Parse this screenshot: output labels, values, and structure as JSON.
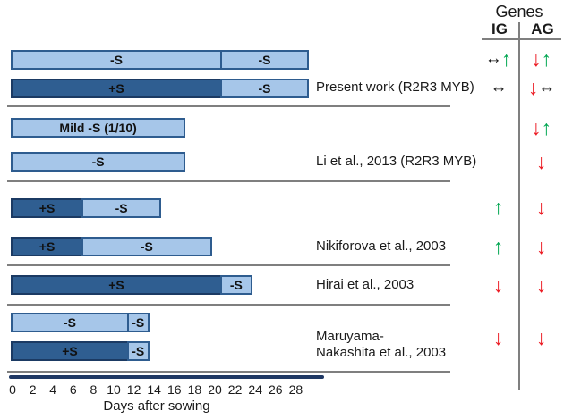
{
  "figure": {
    "genes_header": "Genes",
    "gene_column_ig": "IG",
    "gene_column_ag": "AG"
  },
  "axis": {
    "title": "Days after sowing"
  },
  "icons": {
    "up": "↑",
    "down": "↓",
    "both": "↔"
  },
  "colors": {
    "light_bar_fill": "#a6c6e9",
    "light_bar_border": "#2e5c8f",
    "dark_bar_fill": "#2f5e91",
    "dark_bar_border": "#1b3a63",
    "axis_line": "#1f3864",
    "divider_line": "#7f7f7f",
    "arrow_up_green": "#00a651",
    "arrow_down_red": "#ec1c24",
    "arrow_both_black": "#151515"
  },
  "chart_data": {
    "type": "bar",
    "subtype": "horizontal-treatment-timeline",
    "xlabel": "Days after sowing",
    "xlim": [
      0,
      31
    ],
    "x_ticks": [
      0,
      2,
      4,
      6,
      8,
      10,
      12,
      14,
      16,
      18,
      20,
      22,
      24,
      26,
      28
    ],
    "gene_columns": [
      "IG",
      "AG"
    ],
    "bars": [
      {
        "segments": [
          {
            "label": "-S",
            "style": "light",
            "start": 0,
            "end": 20.7
          },
          {
            "label": "-S",
            "style": "light",
            "start": 20.7,
            "end": 29.3
          }
        ]
      },
      {
        "segments": [
          {
            "label": "+S",
            "style": "dark",
            "start": 0,
            "end": 20.7
          },
          {
            "label": "-S",
            "style": "light",
            "start": 20.7,
            "end": 29.3
          }
        ]
      },
      {
        "segments": [
          {
            "label": "Mild -S (1/10)",
            "style": "light",
            "start": 0,
            "end": 17.1
          }
        ]
      },
      {
        "segments": [
          {
            "label": "-S",
            "style": "light",
            "start": 0,
            "end": 17.1
          }
        ]
      },
      {
        "segments": [
          {
            "label": "+S",
            "style": "dark",
            "start": 0,
            "end": 7
          },
          {
            "label": "-S",
            "style": "light",
            "start": 7,
            "end": 14.7
          }
        ]
      },
      {
        "segments": [
          {
            "label": "+S",
            "style": "dark",
            "start": 0,
            "end": 7
          },
          {
            "label": "-S",
            "style": "light",
            "start": 7,
            "end": 19.7
          }
        ]
      },
      {
        "segments": [
          {
            "label": "+S",
            "style": "dark",
            "start": 0,
            "end": 20.7
          },
          {
            "label": "-S",
            "style": "light",
            "start": 20.7,
            "end": 23.7
          }
        ]
      },
      {
        "segments": [
          {
            "label": "-S",
            "style": "light",
            "start": 0,
            "end": 11.5
          },
          {
            "label": "-S",
            "style": "light",
            "start": 11.5,
            "end": 13.5
          }
        ]
      },
      {
        "segments": [
          {
            "label": "+S",
            "style": "dark",
            "start": 0,
            "end": 11.5
          },
          {
            "label": "-S",
            "style": "light",
            "start": 11.5,
            "end": 13.5
          }
        ]
      }
    ],
    "studies": [
      {
        "lines": [
          "Present work (R2R3 MYB)"
        ]
      },
      {
        "lines": [
          "Li et al., 2013 (R2R3 MYB)"
        ]
      },
      {
        "lines": [
          "Nikiforova et al., 2003"
        ]
      },
      {
        "lines": [
          "Hirai et al., 2003"
        ]
      },
      {
        "lines": [
          "Maruyama-",
          "Nakashita et al., 2003"
        ]
      }
    ],
    "arrows": [
      {
        "ig": [
          "both:black",
          "up:green"
        ],
        "ag": [
          "down:red",
          "up:green"
        ]
      },
      {
        "ig": [
          "both:black"
        ],
        "ag": [
          "down:red",
          "both:black"
        ]
      },
      {
        "ig": [],
        "ag": [
          "down:red",
          "up:green"
        ]
      },
      {
        "ig": [],
        "ag": [
          "down:red"
        ]
      },
      {
        "ig": [
          "up:green"
        ],
        "ag": [
          "down:red"
        ]
      },
      {
        "ig": [
          "up:green"
        ],
        "ag": [
          "down:red"
        ]
      },
      {
        "ig": [
          "down:red"
        ],
        "ag": [
          "down:red"
        ]
      },
      {
        "ig": [
          "down:red"
        ],
        "ag": [
          "down:red"
        ]
      }
    ]
  }
}
